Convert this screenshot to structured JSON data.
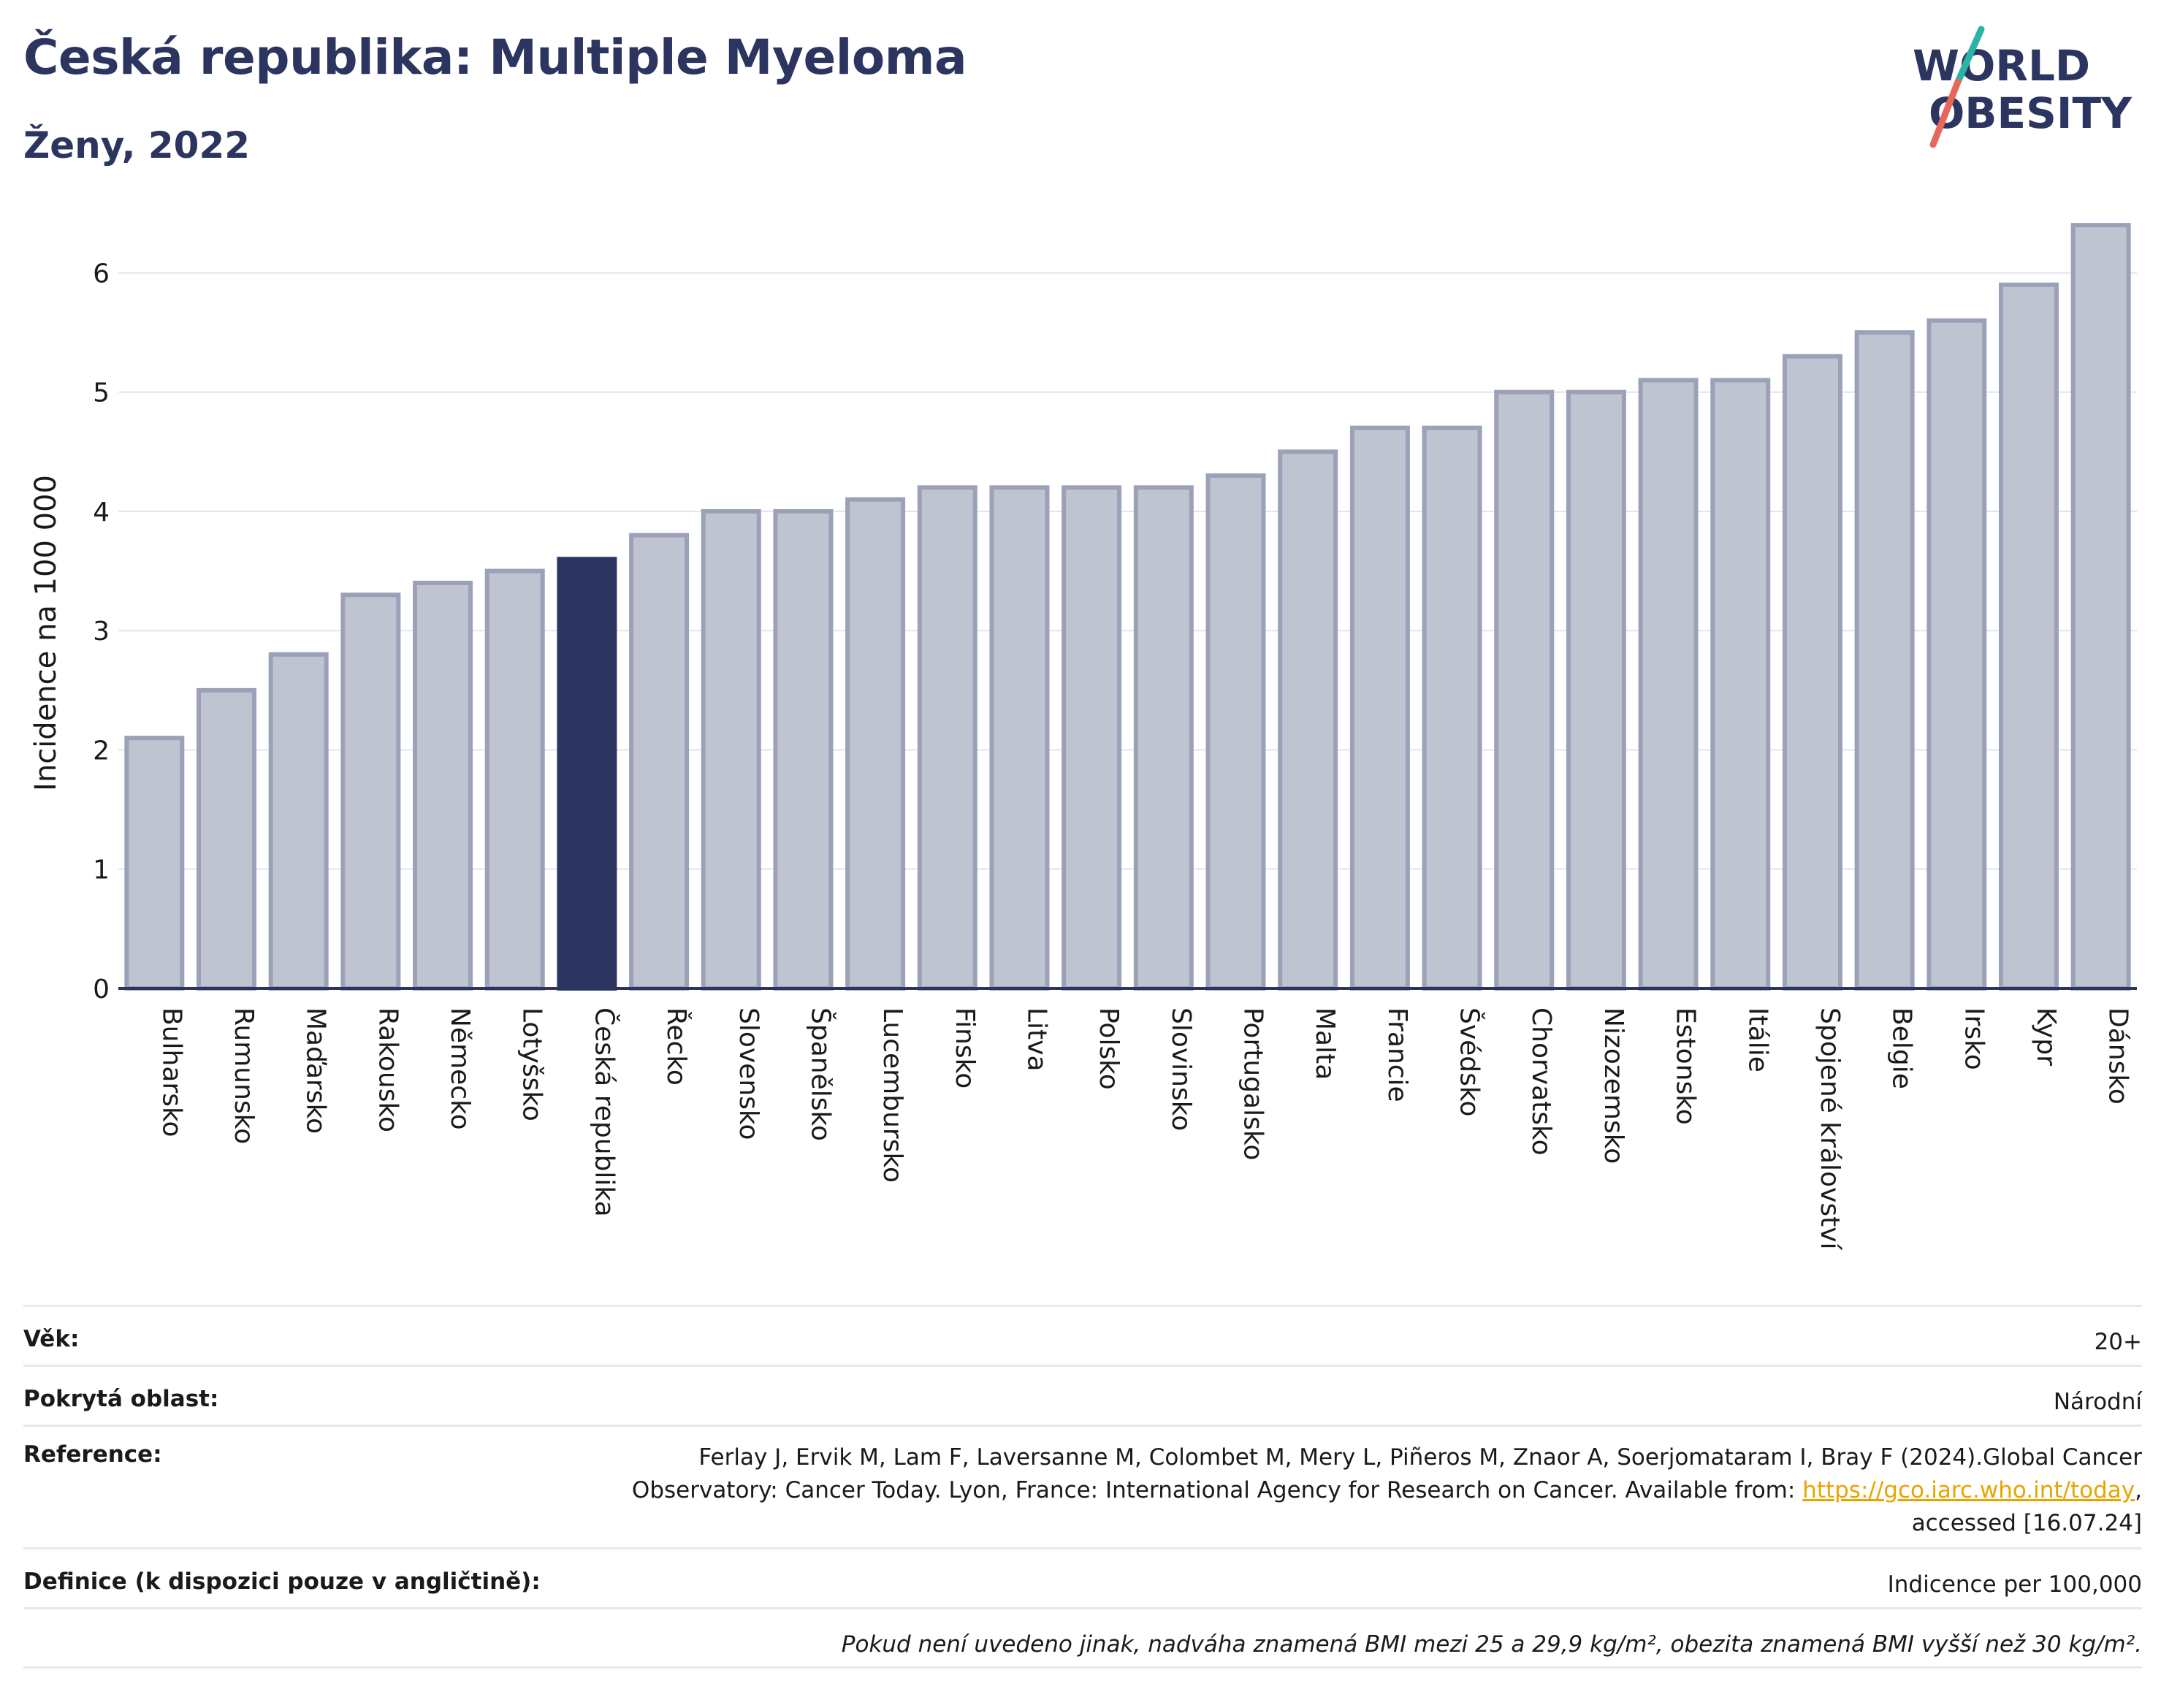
{
  "header": {
    "title": "Česká republika: Multiple Myeloma",
    "subtitle": "Ženy, 2022"
  },
  "logo": {
    "line1": "WORLD",
    "line2": "OBESITY",
    "colors": {
      "text": "#2b3560",
      "slash_teal": "#2bb3a8",
      "slash_red": "#e8665a"
    }
  },
  "chart_data": {
    "type": "bar",
    "title": "",
    "xlabel": "",
    "ylabel": "Incidence na 100 000",
    "ylim": [
      0,
      6.45
    ],
    "yticks": [
      0,
      1,
      2,
      3,
      4,
      5,
      6
    ],
    "grid": true,
    "highlight": "Česká republika",
    "colors": {
      "bar": "#c0c4d1",
      "bar_edge": "#9aa1b8",
      "highlight": "#2b3560",
      "grid": "#e3e5ec",
      "axis": "#2b3560"
    },
    "categories": [
      "Bulharsko",
      "Rumunsko",
      "Maďarsko",
      "Rakousko",
      "Německo",
      "Lotyšsko",
      "Česká republika",
      "Řecko",
      "Slovensko",
      "Španělsko",
      "Lucembursko",
      "Finsko",
      "Litva",
      "Polsko",
      "Slovinsko",
      "Portugalsko",
      "Malta",
      "Francie",
      "Švédsko",
      "Chorvatsko",
      "Nizozemsko",
      "Estonsko",
      "Itálie",
      "Spojené království",
      "Belgie",
      "Irsko",
      "Kypr",
      "Dánsko"
    ],
    "values": [
      2.1,
      2.5,
      2.8,
      3.3,
      3.4,
      3.5,
      3.6,
      3.8,
      4.0,
      4.0,
      4.1,
      4.2,
      4.2,
      4.2,
      4.2,
      4.3,
      4.5,
      4.7,
      4.7,
      5.0,
      5.0,
      5.1,
      5.1,
      5.3,
      5.5,
      5.6,
      5.9,
      6.4
    ]
  },
  "info": {
    "age_label": "Věk:",
    "age_value": "20+",
    "area_label": "Pokrytá oblast:",
    "area_value": "Národní",
    "reference_label": "Reference:",
    "reference_text_1": "Ferlay J, Ervik M, Lam F, Laversanne M, Colombet M, Mery L, Piñeros M, Znaor A, Soerjomataram I, Bray F (2024).Global Cancer Observatory: Cancer Today. Lyon, France: International Agency for Research on Cancer. Available from:",
    "reference_link": "https://gco.iarc.who.int/today",
    "reference_text_2": ", accessed [16.07.24]",
    "definition_label": "Definice (k dispozici pouze v angličtině):",
    "definition_value": "Indicence per 100,000",
    "footnote": "Pokud není uvedeno jinak, nadváha znamená BMI mezi 25 a 29,9 kg/m², obezita znamená BMI vyšší než 30 kg/m²."
  }
}
